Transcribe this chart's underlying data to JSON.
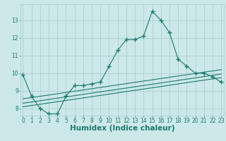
{
  "xlabel": "Humidex (Indice chaleur)",
  "bg_color": "#cce8e8",
  "line_color": "#1a7a6e",
  "grid_color": "#a8cccc",
  "main_data_x": [
    0,
    1,
    2,
    3,
    4,
    5,
    6,
    7,
    8,
    9,
    10,
    11,
    12,
    13,
    14,
    15,
    16,
    17,
    18,
    19,
    20,
    21,
    22,
    23
  ],
  "main_data_y": [
    9.9,
    8.7,
    8.0,
    7.7,
    7.7,
    8.7,
    9.3,
    9.3,
    9.4,
    9.5,
    10.4,
    11.3,
    11.9,
    11.9,
    12.1,
    13.5,
    13.0,
    12.3,
    10.8,
    10.4,
    10.0,
    10.0,
    9.8,
    9.5
  ],
  "line2_data_x": [
    0,
    23
  ],
  "line2_data_y": [
    8.55,
    10.2
  ],
  "line3_data_x": [
    0,
    23
  ],
  "line3_data_y": [
    8.3,
    9.95
  ],
  "line4_data_x": [
    0,
    23
  ],
  "line4_data_y": [
    8.1,
    9.75
  ],
  "xlim": [
    -0.3,
    23.3
  ],
  "ylim": [
    7.6,
    13.9
  ],
  "yticks": [
    8,
    9,
    10,
    11,
    12,
    13
  ],
  "xticks": [
    0,
    1,
    2,
    3,
    4,
    5,
    6,
    7,
    8,
    9,
    10,
    11,
    12,
    13,
    14,
    15,
    16,
    17,
    18,
    19,
    20,
    21,
    22,
    23
  ],
  "marker": "+",
  "markersize": 4,
  "markeredgewidth": 1.0,
  "linewidth": 0.8,
  "tick_fontsize": 5.5,
  "xlabel_fontsize": 7.5
}
